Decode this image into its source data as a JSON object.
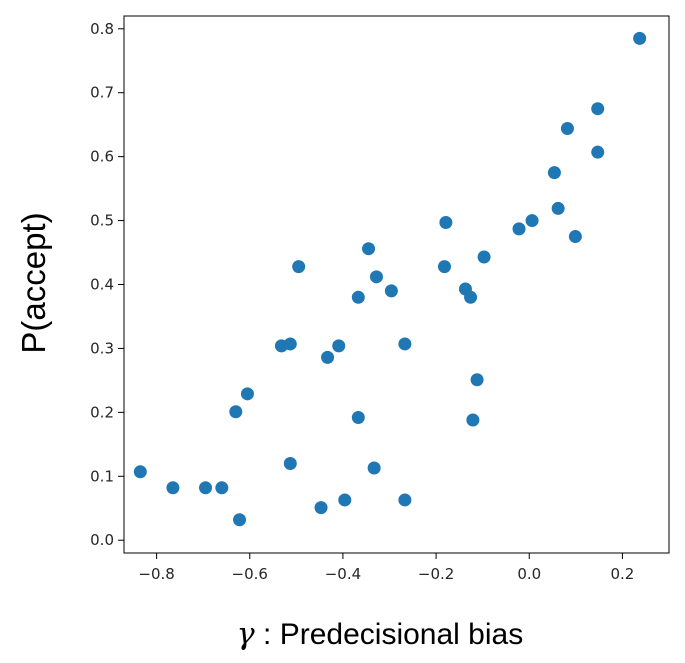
{
  "chart_data": {
    "type": "scatter",
    "title": "",
    "xlabel_symbol": "γ",
    "xlabel_text": " : Predecisional bias",
    "ylabel": "P(accept)",
    "xlim": [
      -0.87,
      0.3
    ],
    "ylim": [
      -0.02,
      0.82
    ],
    "xticks": [
      -0.8,
      -0.6,
      -0.4,
      -0.2,
      0.0,
      0.2
    ],
    "xtick_labels": [
      "−0.8",
      "−0.6",
      "−0.4",
      "−0.2",
      "0.0",
      "0.2"
    ],
    "yticks": [
      0.0,
      0.1,
      0.2,
      0.3,
      0.4,
      0.5,
      0.6,
      0.7,
      0.8
    ],
    "ytick_labels": [
      "0.0",
      "0.1",
      "0.2",
      "0.3",
      "0.4",
      "0.5",
      "0.6",
      "0.7",
      "0.8"
    ],
    "grid": false,
    "marker_color": "#1f77b4",
    "points": [
      {
        "x": -0.835,
        "y": 0.107
      },
      {
        "x": -0.765,
        "y": 0.082
      },
      {
        "x": -0.695,
        "y": 0.082
      },
      {
        "x": -0.66,
        "y": 0.082
      },
      {
        "x": -0.622,
        "y": 0.032
      },
      {
        "x": -0.63,
        "y": 0.201
      },
      {
        "x": -0.605,
        "y": 0.229
      },
      {
        "x": -0.532,
        "y": 0.304
      },
      {
        "x": -0.513,
        "y": 0.307
      },
      {
        "x": -0.513,
        "y": 0.12
      },
      {
        "x": -0.495,
        "y": 0.428
      },
      {
        "x": -0.447,
        "y": 0.051
      },
      {
        "x": -0.433,
        "y": 0.286
      },
      {
        "x": -0.409,
        "y": 0.304
      },
      {
        "x": -0.396,
        "y": 0.063
      },
      {
        "x": -0.367,
        "y": 0.38
      },
      {
        "x": -0.367,
        "y": 0.192
      },
      {
        "x": -0.345,
        "y": 0.456
      },
      {
        "x": -0.333,
        "y": 0.113
      },
      {
        "x": -0.328,
        "y": 0.412
      },
      {
        "x": -0.296,
        "y": 0.39
      },
      {
        "x": -0.267,
        "y": 0.307
      },
      {
        "x": -0.267,
        "y": 0.063
      },
      {
        "x": -0.182,
        "y": 0.428
      },
      {
        "x": -0.179,
        "y": 0.497
      },
      {
        "x": -0.137,
        "y": 0.393
      },
      {
        "x": -0.126,
        "y": 0.38
      },
      {
        "x": -0.121,
        "y": 0.188
      },
      {
        "x": -0.112,
        "y": 0.251
      },
      {
        "x": -0.097,
        "y": 0.443
      },
      {
        "x": -0.022,
        "y": 0.487
      },
      {
        "x": 0.006,
        "y": 0.5
      },
      {
        "x": 0.054,
        "y": 0.575
      },
      {
        "x": 0.062,
        "y": 0.519
      },
      {
        "x": 0.082,
        "y": 0.644
      },
      {
        "x": 0.099,
        "y": 0.475
      },
      {
        "x": 0.147,
        "y": 0.675
      },
      {
        "x": 0.147,
        "y": 0.607
      },
      {
        "x": 0.237,
        "y": 0.785
      }
    ]
  }
}
